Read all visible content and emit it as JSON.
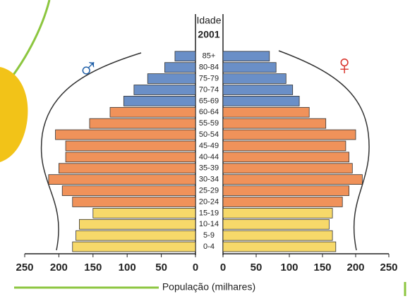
{
  "chart_data": {
    "type": "pyramid",
    "category_label": "Idade",
    "subtitle": "2001",
    "x_label": "População (milhares)",
    "categories": [
      "0-4",
      "5-9",
      "10-14",
      "15-19",
      "20-24",
      "25-29",
      "30-34",
      "35-39",
      "40-44",
      "45-49",
      "50-54",
      "55-59",
      "60-64",
      "65-69",
      "70-74",
      "75-79",
      "80-84",
      "85+"
    ],
    "colors": [
      "#f7d96a",
      "#f7d96a",
      "#f7d96a",
      "#f7d96a",
      "#f0925a",
      "#f0925a",
      "#f0925a",
      "#f0925a",
      "#f0925a",
      "#f0925a",
      "#f0925a",
      "#f0925a",
      "#f0925a",
      "#6a8fc7",
      "#6a8fc7",
      "#6a8fc7",
      "#6a8fc7",
      "#6a8fc7"
    ],
    "series": [
      {
        "name": "♂",
        "color": "#1f5fa8",
        "values": [
          180,
          175,
          170,
          150,
          180,
          195,
          215,
          200,
          190,
          190,
          205,
          155,
          125,
          105,
          90,
          70,
          45,
          30
        ]
      },
      {
        "name": "♀",
        "color": "#d9342b",
        "values": [
          170,
          165,
          160,
          165,
          180,
          190,
          210,
          195,
          190,
          185,
          200,
          155,
          130,
          115,
          105,
          95,
          80,
          70
        ]
      }
    ],
    "xlim": [
      0,
      250
    ],
    "xticks": [
      0,
      50,
      100,
      150,
      200,
      250
    ]
  }
}
